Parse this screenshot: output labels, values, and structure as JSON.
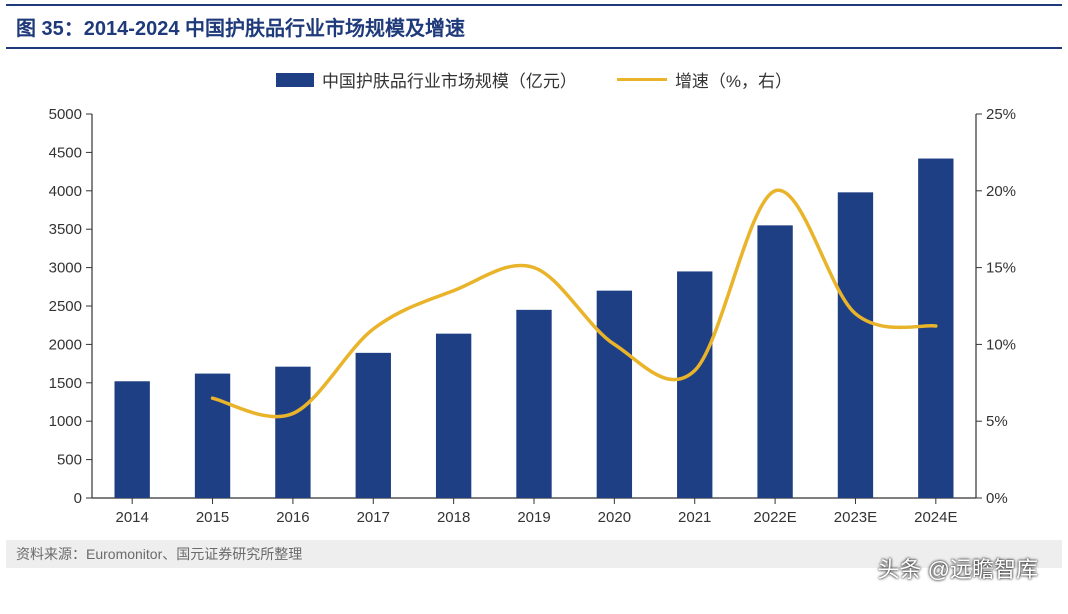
{
  "title": "图 35：2014-2024 中国护肤品行业市场规模及增速",
  "legend": {
    "bar_label": "中国护肤品行业市场规模（亿元）",
    "line_label": "增速（%，右）"
  },
  "chart": {
    "type": "bar+line",
    "categories": [
      "2014",
      "2015",
      "2016",
      "2017",
      "2018",
      "2019",
      "2020",
      "2021",
      "2022E",
      "2023E",
      "2024E"
    ],
    "bar_values": [
      1520,
      1620,
      1710,
      1890,
      2140,
      2450,
      2700,
      2950,
      3550,
      3980,
      4420
    ],
    "line_values": [
      null,
      6.5,
      5.5,
      11.0,
      13.5,
      15.0,
      10.0,
      8.3,
      20.0,
      12.0,
      11.2
    ],
    "bar_color": "#1f3f84",
    "line_color": "#e9b32a",
    "line_width": 3.5,
    "y_left": {
      "min": 0,
      "max": 5000,
      "step": 500
    },
    "y_right": {
      "min": 0,
      "max": 25,
      "step": 5,
      "suffix": "%"
    },
    "axis_color": "#333333",
    "grid_color": "#cccccc",
    "tick_font_size": 15,
    "bar_width_ratio": 0.44,
    "background": "#ffffff"
  },
  "source": "资料来源：Euromonitor、国元证券研究所整理",
  "watermark": "头条 @远瞻智库"
}
